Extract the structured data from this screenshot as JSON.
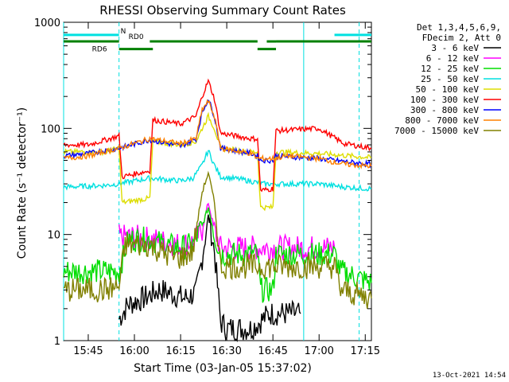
{
  "chart_data": {
    "type": "line",
    "title": "RHESSI Observing Summary Count Rates",
    "xlabel": "Start Time (03-Jan-05 15:37:02)",
    "ylabel": "Count Rate (s⁻¹ detector⁻¹)",
    "x_ticks": [
      "15:45",
      "16:00",
      "16:15",
      "16:30",
      "16:45",
      "17:00",
      "17:15"
    ],
    "y_ticks": [
      "1",
      "10",
      "100",
      "1000"
    ],
    "y_scale": "log",
    "ylim": [
      1,
      1000
    ],
    "xlim": [
      "15:37",
      "17:17"
    ],
    "timestamp": "13-Oct-2021 14:54",
    "legend_header": [
      "Det 1,3,4,5,6,9,",
      "FDecim 2, Att 0"
    ],
    "annotations": {
      "N": {
        "label": "N",
        "color": "#00e0e0",
        "start": "15:37",
        "end": "17:17",
        "gap": [
          "15:55",
          "17:05"
        ],
        "y": 760
      },
      "RD0": {
        "label": "RD0",
        "color": "#008000",
        "segments": [
          [
            "15:37",
            "15:55"
          ],
          [
            "16:05",
            "16:40"
          ],
          [
            "16:43",
            "16:46"
          ],
          [
            "16:46",
            "17:17"
          ]
        ],
        "y": 660
      },
      "RD6": {
        "label": "RD6",
        "color": "#008000",
        "segments": [
          [
            "15:55",
            "16:06"
          ],
          [
            "16:40",
            "16:46"
          ]
        ],
        "y": 560
      }
    },
    "vlines": {
      "solid": [
        "15:37",
        "16:55"
      ],
      "dashed": [
        "15:55",
        "17:13"
      ],
      "color": "#00e0e0"
    },
    "series": [
      {
        "name": "3 - 6 keV",
        "color": "#000000",
        "points": [
          [
            "15:55",
            1.6
          ],
          [
            "15:58",
            2.2
          ],
          [
            "16:03",
            2.5
          ],
          [
            "16:08",
            3.0
          ],
          [
            "16:12",
            2.8
          ],
          [
            "16:16",
            2.5
          ],
          [
            "16:20",
            2.8
          ],
          [
            "16:22",
            6.0
          ],
          [
            "16:24",
            15.0
          ],
          [
            "16:26",
            7.0
          ],
          [
            "16:28",
            1.5
          ],
          [
            "16:30",
            1.3
          ],
          [
            "16:38",
            1.3
          ],
          [
            "16:44",
            1.8
          ],
          [
            "16:54",
            1.8
          ]
        ]
      },
      {
        "name": "6 - 12 keV",
        "color": "#ff00ff",
        "points": [
          [
            "15:55",
            9.5
          ],
          [
            "16:00",
            9.5
          ],
          [
            "16:06",
            9.0
          ],
          [
            "16:10",
            8.5
          ],
          [
            "16:15",
            8.0
          ],
          [
            "16:19",
            8.5
          ],
          [
            "16:22",
            11.0
          ],
          [
            "16:24",
            20.0
          ],
          [
            "16:26",
            11.0
          ],
          [
            "16:28",
            7.5
          ],
          [
            "16:40",
            7.5
          ],
          [
            "16:46",
            7.5
          ],
          [
            "17:05",
            7.5
          ]
        ]
      },
      {
        "name": "12 - 25 keV",
        "color": "#00dd00",
        "points": [
          [
            "15:37",
            4.5
          ],
          [
            "15:50",
            4.5
          ],
          [
            "15:55",
            4.5
          ],
          [
            "15:58",
            9.0
          ],
          [
            "16:05",
            9.0
          ],
          [
            "16:10",
            8.0
          ],
          [
            "16:15",
            7.5
          ],
          [
            "16:19",
            8.0
          ],
          [
            "16:22",
            12.0
          ],
          [
            "16:24",
            18.0
          ],
          [
            "16:26",
            10.0
          ],
          [
            "16:28",
            6.5
          ],
          [
            "16:40",
            6.5
          ],
          [
            "16:41",
            3.0
          ],
          [
            "16:45",
            3.0
          ],
          [
            "16:46",
            6.5
          ],
          [
            "17:05",
            6.5
          ],
          [
            "17:07",
            4.5
          ],
          [
            "17:17",
            3.5
          ]
        ]
      },
      {
        "name": "25 - 50 keV",
        "color": "#00e0e0",
        "points": [
          [
            "15:37",
            28.0
          ],
          [
            "15:50",
            29.0
          ],
          [
            "15:55",
            30.0
          ],
          [
            "16:00",
            32.0
          ],
          [
            "16:05",
            34.0
          ],
          [
            "16:10",
            33.0
          ],
          [
            "16:15",
            32.0
          ],
          [
            "16:19",
            34.0
          ],
          [
            "16:22",
            45.0
          ],
          [
            "16:24",
            62.0
          ],
          [
            "16:26",
            45.0
          ],
          [
            "16:28",
            35.0
          ],
          [
            "16:35",
            33.0
          ],
          [
            "16:42",
            30.0
          ],
          [
            "16:50",
            30.0
          ],
          [
            "17:00",
            30.0
          ],
          [
            "17:08",
            28.0
          ],
          [
            "17:17",
            27.0
          ]
        ]
      },
      {
        "name": "50 - 100 keV",
        "color": "#dddd00",
        "points": [
          [
            "15:37",
            60.0
          ],
          [
            "15:50",
            60.0
          ],
          [
            "15:55",
            65.0
          ],
          [
            "15:56",
            20.0
          ],
          [
            "16:05",
            22.0
          ],
          [
            "16:06",
            75.0
          ],
          [
            "16:15",
            70.0
          ],
          [
            "16:20",
            75.0
          ],
          [
            "16:22",
            100.0
          ],
          [
            "16:24",
            130.0
          ],
          [
            "16:26",
            100.0
          ],
          [
            "16:28",
            65.0
          ],
          [
            "16:38",
            60.0
          ],
          [
            "16:40",
            60.0
          ],
          [
            "16:41",
            18.0
          ],
          [
            "16:45",
            18.0
          ],
          [
            "16:46",
            60.0
          ],
          [
            "17:00",
            58.0
          ],
          [
            "17:10",
            55.0
          ],
          [
            "17:17",
            53.0
          ]
        ]
      },
      {
        "name": "100 - 300 keV",
        "color": "#ff0000",
        "points": [
          [
            "15:37",
            70.0
          ],
          [
            "15:45",
            70.0
          ],
          [
            "15:52",
            80.0
          ],
          [
            "15:55",
            85.0
          ],
          [
            "15:56",
            35.0
          ],
          [
            "16:05",
            40.0
          ],
          [
            "16:06",
            120.0
          ],
          [
            "16:15",
            110.0
          ],
          [
            "16:20",
            130.0
          ],
          [
            "16:22",
            200.0
          ],
          [
            "16:24",
            280.0
          ],
          [
            "16:26",
            190.0
          ],
          [
            "16:28",
            90.0
          ],
          [
            "16:38",
            80.0
          ],
          [
            "16:40",
            80.0
          ],
          [
            "16:41",
            26.0
          ],
          [
            "16:45",
            27.0
          ],
          [
            "16:46",
            95.0
          ],
          [
            "17:00",
            100.0
          ],
          [
            "17:08",
            72.0
          ],
          [
            "17:17",
            65.0
          ]
        ]
      },
      {
        "name": "300 - 800 keV",
        "color": "#0000ff",
        "points": [
          [
            "15:37",
            55.0
          ],
          [
            "15:45",
            58.0
          ],
          [
            "15:55",
            65.0
          ],
          [
            "16:05",
            78.0
          ],
          [
            "16:15",
            68.0
          ],
          [
            "16:20",
            80.0
          ],
          [
            "16:22",
            140.0
          ],
          [
            "16:24",
            190.0
          ],
          [
            "16:26",
            130.0
          ],
          [
            "16:28",
            65.0
          ],
          [
            "16:38",
            58.0
          ],
          [
            "16:40",
            55.0
          ],
          [
            "16:41",
            50.0
          ],
          [
            "16:45",
            50.0
          ],
          [
            "16:46",
            55.0
          ],
          [
            "17:00",
            52.0
          ],
          [
            "17:10",
            48.0
          ],
          [
            "17:17",
            46.0
          ]
        ]
      },
      {
        "name": "800 - 7000 keV",
        "color": "#ff8000",
        "points": [
          [
            "15:37",
            52.0
          ],
          [
            "15:45",
            55.0
          ],
          [
            "15:55",
            65.0
          ],
          [
            "16:05",
            80.0
          ],
          [
            "16:15",
            72.0
          ],
          [
            "16:20",
            80.0
          ],
          [
            "16:22",
            150.0
          ],
          [
            "16:24",
            180.0
          ],
          [
            "16:26",
            130.0
          ],
          [
            "16:28",
            65.0
          ],
          [
            "16:38",
            58.0
          ],
          [
            "16:40",
            52.0
          ],
          [
            "16:45",
            52.0
          ],
          [
            "16:50",
            55.0
          ],
          [
            "17:00",
            52.0
          ],
          [
            "17:08",
            46.0
          ],
          [
            "17:17",
            44.0
          ]
        ]
      },
      {
        "name": "7000 - 15000 keV",
        "color": "#808000",
        "points": [
          [
            "15:37",
            3.0
          ],
          [
            "15:50",
            3.0
          ],
          [
            "15:55",
            3.2
          ],
          [
            "15:57",
            8.0
          ],
          [
            "16:05",
            8.0
          ],
          [
            "16:10",
            6.5
          ],
          [
            "16:15",
            6.0
          ],
          [
            "16:19",
            7.0
          ],
          [
            "16:22",
            25.0
          ],
          [
            "16:24",
            38.0
          ],
          [
            "16:26",
            20.0
          ],
          [
            "16:28",
            5.0
          ],
          [
            "16:40",
            5.0
          ],
          [
            "16:46",
            5.0
          ],
          [
            "17:05",
            5.0
          ],
          [
            "17:07",
            3.0
          ],
          [
            "17:17",
            2.5
          ]
        ]
      }
    ]
  }
}
